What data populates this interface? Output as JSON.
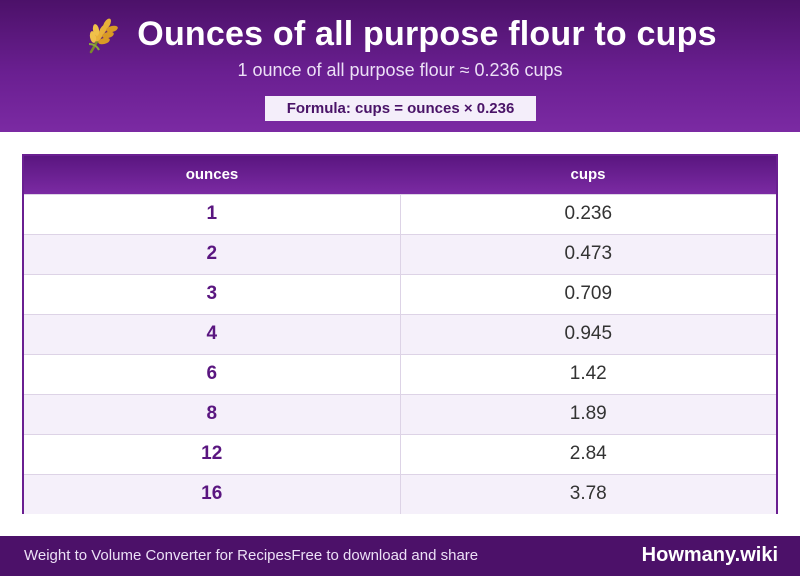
{
  "header": {
    "title": "Ounces of all purpose flour to cups",
    "icon": "wheat-icon",
    "subtitle": "1 ounce of all purpose flour ≈ 0.236 cups",
    "formula": "Formula: cups = ounces × 0.236"
  },
  "table": {
    "columns": [
      "ounces",
      "cups"
    ],
    "rows": [
      [
        "1",
        "0.236"
      ],
      [
        "2",
        "0.473"
      ],
      [
        "3",
        "0.709"
      ],
      [
        "4",
        "0.945"
      ],
      [
        "6",
        "1.42"
      ],
      [
        "8",
        "1.89"
      ],
      [
        "12",
        "2.84"
      ],
      [
        "16",
        "3.78"
      ]
    ]
  },
  "footer": {
    "left_a": "Weight to Volume Converter for Recipes",
    "left_b": "Free to download and share",
    "brand": "Howmany.wiki"
  },
  "colors": {
    "header_bg": "#6a1f91",
    "accent": "#5a1680",
    "row_alt": "#f5f0fa"
  }
}
